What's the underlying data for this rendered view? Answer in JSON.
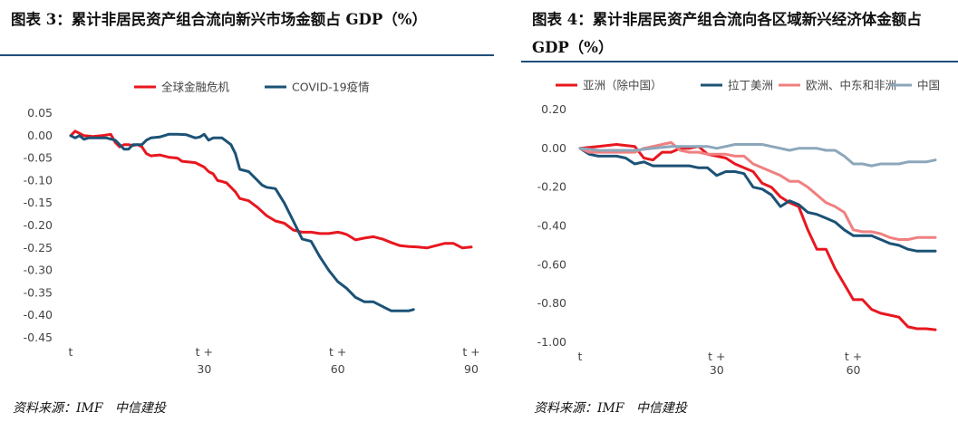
{
  "chart_data": [
    {
      "type": "line",
      "title": "图表 3：累计非居民资产组合流向新兴市场金额占 GDP（%）",
      "source": "资料来源：IMF   中信建投",
      "x_ticks": [
        {
          "x": 0,
          "label": [
            "t"
          ]
        },
        {
          "x": 30,
          "label": [
            "t +",
            "30"
          ]
        },
        {
          "x": 60,
          "label": [
            "t +",
            "60"
          ]
        },
        {
          "x": 90,
          "label": [
            "t +",
            "90"
          ]
        }
      ],
      "xlim": [
        0,
        90
      ],
      "ylim": [
        -0.45,
        0.05
      ],
      "y_ticks": [
        {
          "value": 0.05,
          "label": "0.05"
        },
        {
          "value": 0.0,
          "label": "0.00"
        },
        {
          "value": -0.05,
          "label": "-0.05"
        },
        {
          "value": -0.1,
          "label": "-0.10"
        },
        {
          "value": -0.15,
          "label": "-0.15"
        },
        {
          "value": -0.2,
          "label": "-0.20"
        },
        {
          "value": -0.25,
          "label": "-0.25"
        },
        {
          "value": -0.3,
          "label": "-0.30"
        },
        {
          "value": -0.35,
          "label": "-0.35"
        },
        {
          "value": -0.4,
          "label": "-0.40"
        },
        {
          "value": -0.45,
          "label": "-0.45"
        }
      ],
      "legend_position": "top",
      "series": [
        {
          "name": "全球金融危机",
          "color": "#e8171f",
          "x": [
            0,
            1,
            2,
            3,
            5,
            7,
            9,
            10,
            11,
            12,
            13,
            14,
            15,
            16,
            17,
            18,
            20,
            22,
            24,
            25,
            26,
            28,
            30,
            31,
            32,
            33,
            34,
            35,
            36,
            37,
            38,
            40,
            42,
            44,
            46,
            48,
            50,
            52,
            54,
            56,
            58,
            60,
            61,
            62,
            64,
            66,
            68,
            70,
            72,
            74,
            76,
            78,
            80,
            82,
            84,
            86,
            88,
            90
          ],
          "y": [
            0,
            0.01,
            0.005,
            0,
            -0.002,
            0,
            0.003,
            -0.015,
            -0.025,
            -0.02,
            -0.02,
            -0.022,
            -0.02,
            -0.025,
            -0.04,
            -0.045,
            -0.043,
            -0.048,
            -0.05,
            -0.057,
            -0.058,
            -0.06,
            -0.07,
            -0.08,
            -0.085,
            -0.1,
            -0.102,
            -0.105,
            -0.115,
            -0.125,
            -0.14,
            -0.145,
            -0.16,
            -0.178,
            -0.19,
            -0.195,
            -0.21,
            -0.215,
            -0.215,
            -0.218,
            -0.218,
            -0.215,
            -0.217,
            -0.22,
            -0.232,
            -0.228,
            -0.225,
            -0.23,
            -0.238,
            -0.245,
            -0.247,
            -0.248,
            -0.25,
            -0.245,
            -0.24,
            -0.24,
            -0.25,
            -0.248
          ]
        },
        {
          "name": "COVID-19疫情",
          "color": "#1c5276",
          "x": [
            0,
            1,
            2,
            3,
            4,
            6,
            8,
            10,
            12,
            13,
            14,
            15,
            16,
            17,
            18,
            20,
            22,
            24,
            26,
            28,
            29,
            30,
            31,
            32,
            34,
            36,
            37,
            38,
            40,
            42,
            43,
            44,
            46,
            48,
            50,
            52,
            54,
            56,
            58,
            60,
            62,
            64,
            66,
            68,
            70,
            71,
            72,
            74,
            76,
            77
          ],
          "y": [
            0,
            -0.005,
            0,
            -0.008,
            -0.005,
            -0.005,
            -0.005,
            -0.01,
            -0.03,
            -0.03,
            -0.02,
            -0.02,
            -0.02,
            -0.01,
            -0.005,
            -0.003,
            0.003,
            0.003,
            0.002,
            -0.005,
            -0.003,
            0.003,
            -0.01,
            -0.005,
            -0.005,
            -0.02,
            -0.04,
            -0.075,
            -0.08,
            -0.1,
            -0.11,
            -0.115,
            -0.118,
            -0.15,
            -0.19,
            -0.23,
            -0.235,
            -0.27,
            -0.3,
            -0.325,
            -0.34,
            -0.36,
            -0.37,
            -0.37,
            -0.38,
            -0.385,
            -0.39,
            -0.39,
            -0.39,
            -0.387
          ]
        }
      ]
    },
    {
      "type": "line",
      "title": "图表 4：累计非居民资产组合流向各区域新兴经济体金额占 GDP（%）",
      "source": "资料来源：IMF   中信建投",
      "x_ticks": [
        {
          "x": 0,
          "label": [
            "t"
          ]
        },
        {
          "x": 30,
          "label": [
            "t +",
            "30"
          ]
        },
        {
          "x": 60,
          "label": [
            "t +",
            "60"
          ]
        }
      ],
      "xlim": [
        0,
        78
      ],
      "ylim": [
        -1.0,
        0.2
      ],
      "y_ticks": [
        {
          "value": 0.2,
          "label": "0.20"
        },
        {
          "value": 0.0,
          "label": "0.00"
        },
        {
          "value": -0.2,
          "label": "-0.20"
        },
        {
          "value": -0.4,
          "label": "-0.40"
        },
        {
          "value": -0.6,
          "label": "-0.60"
        },
        {
          "value": -0.8,
          "label": "-0.80"
        },
        {
          "value": -1.0,
          "label": "-1.00"
        }
      ],
      "legend_position": "top",
      "series": [
        {
          "name": "亚洲（除中国）",
          "color": "#e8171f",
          "x": [
            0,
            4,
            8,
            12,
            14,
            16,
            18,
            20,
            22,
            24,
            26,
            28,
            30,
            32,
            34,
            36,
            38,
            40,
            42,
            44,
            46,
            48,
            50,
            52,
            54,
            56,
            58,
            60,
            62,
            64,
            66,
            68,
            70,
            72,
            74,
            76,
            78
          ],
          "y": [
            0,
            0.01,
            0.02,
            0.01,
            -0.05,
            -0.06,
            -0.02,
            -0.02,
            0,
            0,
            0.01,
            -0.03,
            -0.04,
            -0.05,
            -0.08,
            -0.1,
            -0.12,
            -0.18,
            -0.2,
            -0.25,
            -0.28,
            -0.3,
            -0.42,
            -0.52,
            -0.52,
            -0.62,
            -0.7,
            -0.78,
            -0.78,
            -0.83,
            -0.85,
            -0.86,
            -0.87,
            -0.92,
            -0.93,
            -0.93,
            -0.935
          ]
        },
        {
          "name": "拉丁美洲",
          "color": "#1c5276",
          "x": [
            0,
            2,
            4,
            6,
            8,
            10,
            12,
            14,
            16,
            18,
            20,
            22,
            24,
            26,
            28,
            30,
            32,
            34,
            36,
            38,
            40,
            42,
            44,
            46,
            48,
            50,
            52,
            54,
            56,
            58,
            60,
            62,
            64,
            66,
            68,
            70,
            72,
            74,
            76,
            78
          ],
          "y": [
            0,
            -0.03,
            -0.04,
            -0.04,
            -0.04,
            -0.05,
            -0.08,
            -0.07,
            -0.09,
            -0.09,
            -0.09,
            -0.09,
            -0.09,
            -0.1,
            -0.1,
            -0.14,
            -0.12,
            -0.12,
            -0.13,
            -0.2,
            -0.21,
            -0.24,
            -0.3,
            -0.27,
            -0.29,
            -0.33,
            -0.34,
            -0.36,
            -0.38,
            -0.42,
            -0.45,
            -0.45,
            -0.45,
            -0.47,
            -0.49,
            -0.5,
            -0.52,
            -0.53,
            -0.53,
            -0.53
          ]
        },
        {
          "name": "欧洲、中东和非洲",
          "color": "#f08080",
          "x": [
            0,
            2,
            4,
            6,
            8,
            10,
            12,
            14,
            16,
            18,
            20,
            22,
            24,
            26,
            28,
            30,
            32,
            34,
            36,
            38,
            40,
            42,
            44,
            46,
            48,
            50,
            52,
            54,
            56,
            58,
            60,
            62,
            64,
            66,
            68,
            70,
            72,
            74,
            76,
            78
          ],
          "y": [
            0,
            -0.02,
            -0.02,
            -0.02,
            -0.02,
            -0.02,
            -0.02,
            0,
            0.01,
            0.02,
            0.03,
            -0.01,
            -0.02,
            -0.02,
            -0.03,
            -0.03,
            -0.03,
            -0.04,
            -0.04,
            -0.08,
            -0.1,
            -0.12,
            -0.14,
            -0.17,
            -0.17,
            -0.2,
            -0.24,
            -0.28,
            -0.3,
            -0.33,
            -0.42,
            -0.43,
            -0.43,
            -0.44,
            -0.46,
            -0.47,
            -0.47,
            -0.46,
            -0.46,
            -0.46
          ]
        },
        {
          "name": "中国",
          "color": "#8ca7ba",
          "x": [
            0,
            4,
            8,
            12,
            16,
            20,
            24,
            28,
            30,
            32,
            34,
            36,
            38,
            40,
            42,
            44,
            46,
            48,
            50,
            52,
            54,
            56,
            58,
            60,
            62,
            64,
            66,
            68,
            70,
            72,
            74,
            76,
            78
          ],
          "y": [
            0,
            -0.01,
            -0.01,
            -0.01,
            0,
            0.01,
            0.01,
            0.01,
            0,
            0.01,
            0.02,
            0.02,
            0.02,
            0.02,
            0.01,
            0,
            -0.01,
            0,
            0,
            0,
            -0.01,
            -0.01,
            -0.04,
            -0.08,
            -0.08,
            -0.09,
            -0.08,
            -0.08,
            -0.08,
            -0.07,
            -0.07,
            -0.07,
            -0.06
          ]
        }
      ]
    }
  ]
}
